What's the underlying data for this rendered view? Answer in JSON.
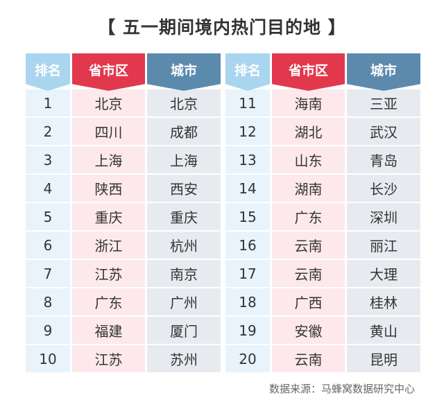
{
  "title": "【 五一期间境内热门目的地 】",
  "headers": [
    "排名",
    "省市区",
    "城市"
  ],
  "header_colors": {
    "rank": "#a9d5ef",
    "province": "#e2384d",
    "city": "#5c8aad"
  },
  "rows": [
    [
      "1",
      "北京",
      "北京"
    ],
    [
      "2",
      "四川",
      "成都"
    ],
    [
      "3",
      "上海",
      "上海"
    ],
    [
      "4",
      "陕西",
      "西安"
    ],
    [
      "5",
      "重庆",
      "重庆"
    ],
    [
      "6",
      "浙江",
      "杭州"
    ],
    [
      "7",
      "江苏",
      "南京"
    ],
    [
      "8",
      "广东",
      "广州"
    ],
    [
      "9",
      "福建",
      "厦门"
    ],
    [
      "10",
      "江苏",
      "苏州"
    ],
    [
      "11",
      "海南",
      "三亚"
    ],
    [
      "12",
      "湖北",
      "武汉"
    ],
    [
      "13",
      "山东",
      "青岛"
    ],
    [
      "14",
      "湖南",
      "长沙"
    ],
    [
      "15",
      "广东",
      "深圳"
    ],
    [
      "16",
      "云南",
      "丽江"
    ],
    [
      "17",
      "云南",
      "大理"
    ],
    [
      "18",
      "广西",
      "桂林"
    ],
    [
      "19",
      "安徽",
      "黄山"
    ],
    [
      "20",
      "云南",
      "昆明"
    ]
  ],
  "source": "数据来源：马蜂窝数据研究中心"
}
